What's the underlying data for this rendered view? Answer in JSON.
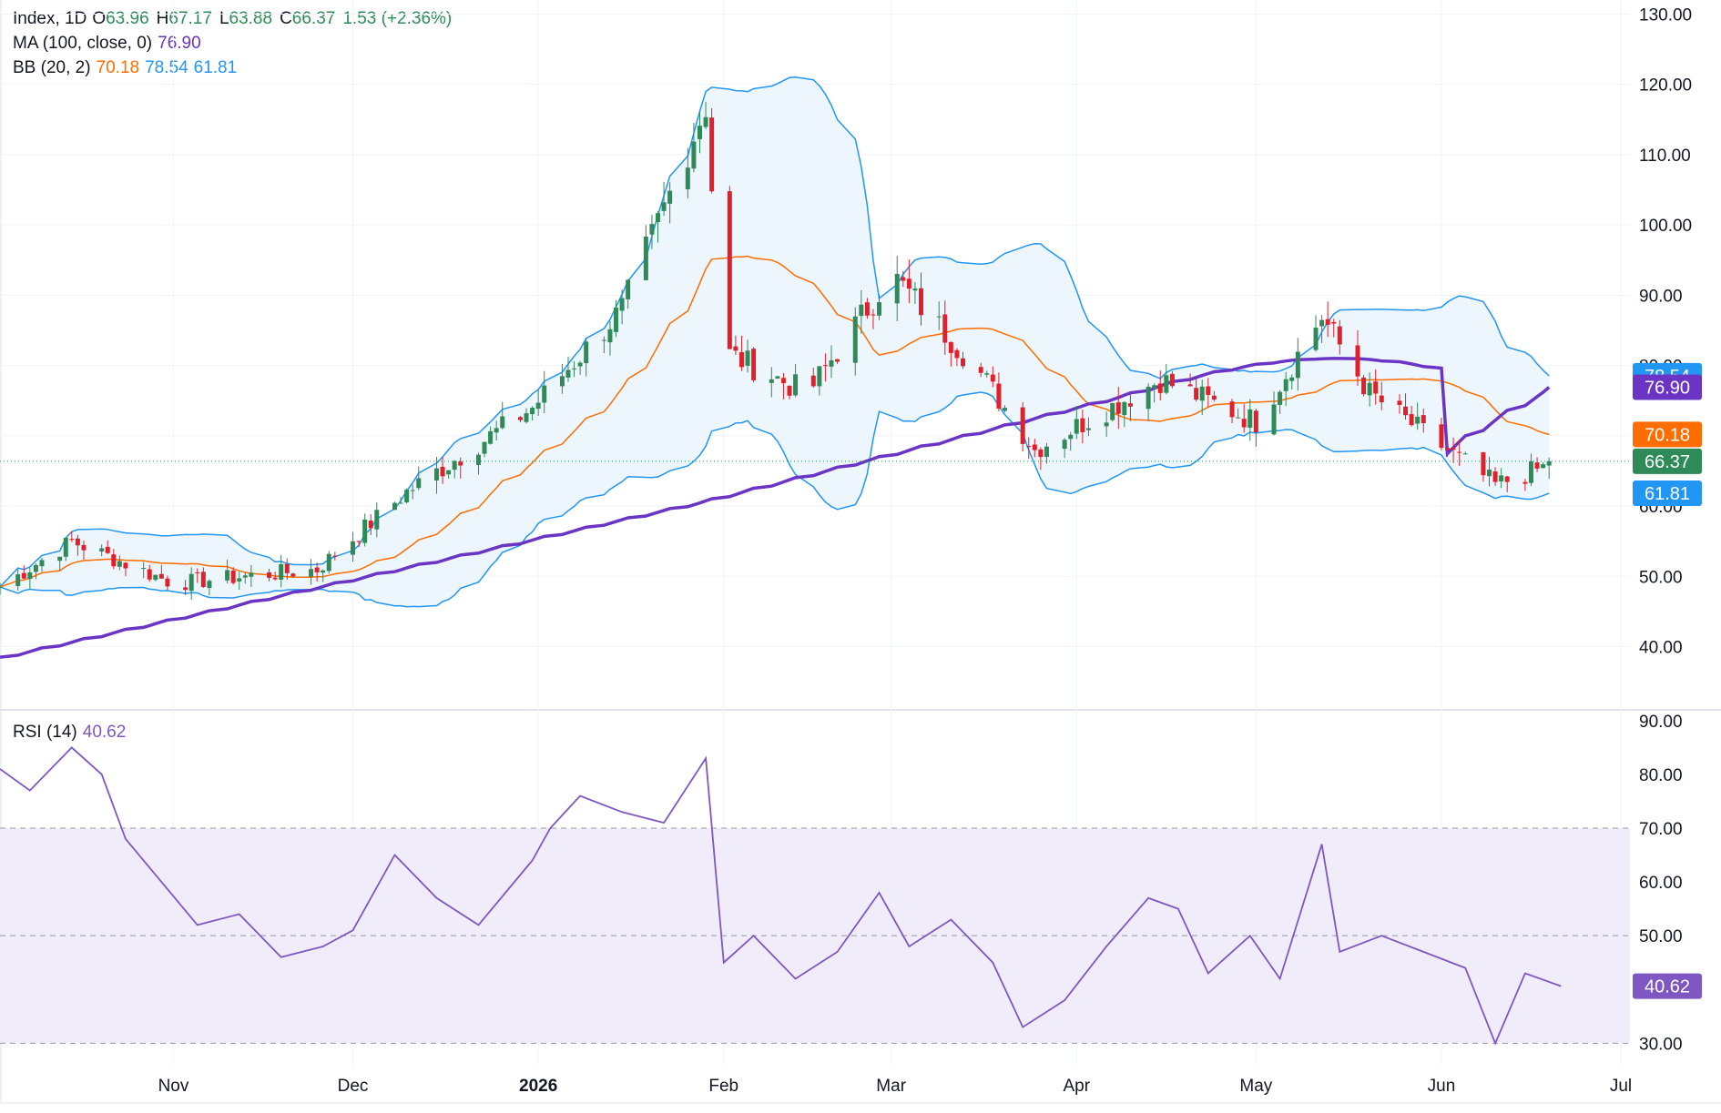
{
  "legend": {
    "symbol": "Index, 1D",
    "open_label": "O",
    "open": "63.96",
    "high_label": "H",
    "high": "67.17",
    "low_label": "L",
    "low": "63.88",
    "close_label": "C",
    "close": "66.37",
    "change": "1.53 (+2.36%)",
    "ma_label": "MA (100, close, 0)",
    "ma_value": "76.90",
    "bb_label": "BB (20, 2)",
    "bb_mid": "70.18",
    "bb_upper": "78.54",
    "bb_lower": "61.81",
    "rsi_label": "RSI (14)",
    "rsi_value": "40.62"
  },
  "colors": {
    "up": "#2e8b57",
    "down": "#e0202a",
    "ma": "#6a35c4",
    "bb_mid": "#ff6d00",
    "bb_band": "#2196f3",
    "bb_fill": "#eef6fd",
    "rsi": "#7e57c2",
    "rsi_fill": "#f1ecfa",
    "close_badge": "#2e8b57",
    "grid": "#f0f3fa",
    "text": "#131722"
  },
  "chart_data": [
    {
      "type": "candlestick",
      "price_axis": {
        "ticks": [
          "40.00",
          "50.00",
          "60.00",
          "70.00",
          "80.00",
          "90.00",
          "100.00",
          "110.00",
          "120.00",
          "130.00"
        ],
        "ylim": [
          31,
          132
        ]
      },
      "x_axis": {
        "labels": [
          "Nov",
          "Dec",
          "2026",
          "Feb",
          "Mar",
          "Apr",
          "May",
          "Jun",
          "Jul"
        ],
        "dates": [
          "2025-11-01",
          "2025-12-01",
          "2026-01-01",
          "2026-02-01",
          "2026-03-01",
          "2026-04-01",
          "2026-05-01",
          "2026-06-01",
          "2026-07-01"
        ],
        "range": [
          "2025-10-03",
          "2026-07-01"
        ]
      },
      "ohlc_monthly_anchors": [
        {
          "date": "2025-10-03",
          "close": 48.5
        },
        {
          "date": "2025-10-15",
          "close": 55.0
        },
        {
          "date": "2025-11-01",
          "close": 49.0
        },
        {
          "date": "2025-11-25",
          "close": 51.0
        },
        {
          "date": "2025-12-10",
          "close": 62.0
        },
        {
          "date": "2025-12-31",
          "close": 74.0
        },
        {
          "date": "2026-01-15",
          "close": 88.0
        },
        {
          "date": "2026-01-29",
          "close": 117.0
        },
        {
          "date": "2026-02-01",
          "close": 82.0
        },
        {
          "date": "2026-02-15",
          "close": 76.0
        },
        {
          "date": "2026-03-01",
          "close": 93.0
        },
        {
          "date": "2026-03-15",
          "close": 80.0
        },
        {
          "date": "2026-03-25",
          "close": 68.0
        },
        {
          "date": "2026-04-15",
          "close": 78.0
        },
        {
          "date": "2026-05-01",
          "close": 72.0
        },
        {
          "date": "2026-05-12",
          "close": 87.0
        },
        {
          "date": "2026-05-20",
          "close": 76.0
        },
        {
          "date": "2026-06-10",
          "close": 63.0
        },
        {
          "date": "2026-06-21",
          "close": 66.37
        }
      ],
      "series": [
        {
          "name": "MA (100, close, 0)",
          "last": 76.9
        },
        {
          "name": "BB (20, 2)",
          "basis_last": 70.18,
          "upper_last": 78.54,
          "lower_last": 61.81
        }
      ],
      "last_close": 66.37
    },
    {
      "type": "line",
      "name": "RSI (14)",
      "y_axis": {
        "ticks": [
          "30.00",
          "40.00",
          "50.00",
          "60.00",
          "70.00",
          "80.00",
          "90.00"
        ],
        "ylim": [
          26,
          92
        ]
      },
      "bands": {
        "upper": 70,
        "middle": 50,
        "lower": 30
      },
      "x": [
        "2025-10-03",
        "2025-10-08",
        "2025-10-15",
        "2025-10-20",
        "2025-10-24",
        "2025-11-05",
        "2025-11-12",
        "2025-11-19",
        "2025-11-26",
        "2025-12-01",
        "2025-12-08",
        "2025-12-15",
        "2025-12-22",
        "2025-12-31",
        "2026-01-03",
        "2026-01-08",
        "2026-01-15",
        "2026-01-22",
        "2026-01-29",
        "2026-02-01",
        "2026-02-06",
        "2026-02-13",
        "2026-02-20",
        "2026-02-27",
        "2026-03-04",
        "2026-03-11",
        "2026-03-18",
        "2026-03-23",
        "2026-03-30",
        "2026-04-06",
        "2026-04-13",
        "2026-04-18",
        "2026-04-23",
        "2026-04-30",
        "2026-05-05",
        "2026-05-12",
        "2026-05-15",
        "2026-05-22",
        "2026-05-29",
        "2026-06-05",
        "2026-06-10",
        "2026-06-15",
        "2026-06-21"
      ],
      "values": [
        81,
        77,
        85,
        80,
        68,
        52,
        54,
        46,
        48,
        51,
        65,
        57,
        52,
        64,
        70,
        76,
        73,
        71,
        83,
        45,
        50,
        42,
        47,
        58,
        48,
        53,
        45,
        33,
        38,
        48,
        57,
        55,
        43,
        50,
        42,
        67,
        47,
        50,
        47,
        44,
        30,
        43,
        40.62
      ],
      "last": 40.62
    }
  ]
}
